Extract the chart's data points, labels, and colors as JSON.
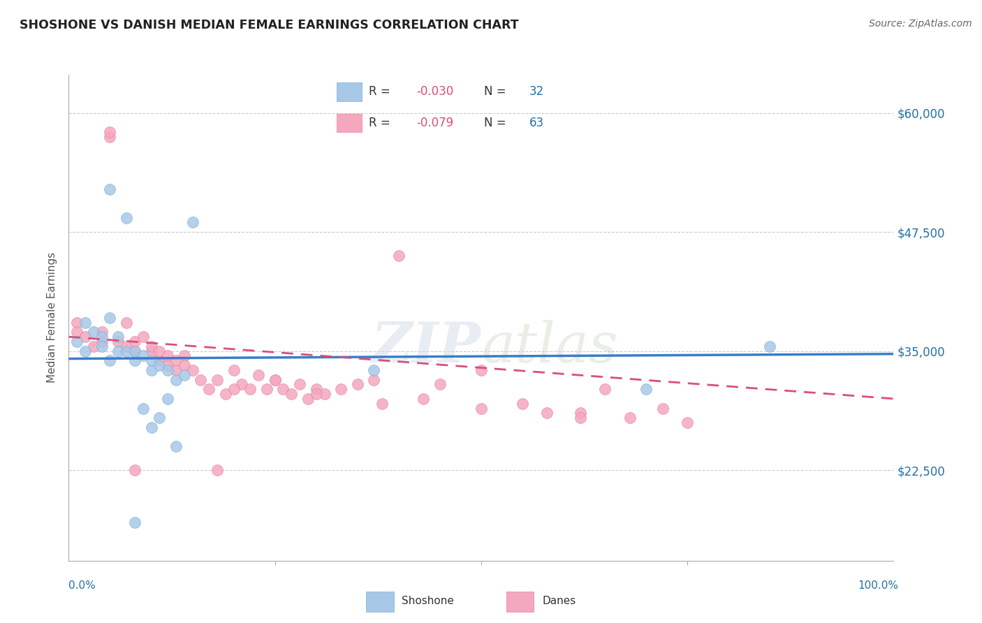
{
  "title": "SHOSHONE VS DANISH MEDIAN FEMALE EARNINGS CORRELATION CHART",
  "source": "Source: ZipAtlas.com",
  "ylabel": "Median Female Earnings",
  "ymin": 13000,
  "ymax": 64000,
  "xmin": 0.0,
  "xmax": 1.0,
  "shoshone_color": "#a8c8e8",
  "shoshone_edge_color": "#7bafd4",
  "danes_color": "#f4a8be",
  "danes_edge_color": "#e87fa0",
  "shoshone_line_color": "#3a7dc9",
  "danes_line_color": "#d94f7a",
  "ytick_positions": [
    22500,
    35000,
    47500,
    60000
  ],
  "ytick_labels": [
    "$22,500",
    "$35,000",
    "$47,500",
    "$60,000"
  ],
  "R_shoshone": -0.03,
  "N_shoshone": 32,
  "R_danes": -0.079,
  "N_danes": 63,
  "watermark_zip": "ZIP",
  "watermark_atlas": "atlas",
  "legend_blue_color": "#2471a3",
  "legend_pink_color": "#d94f7a",
  "shoshone_x": [
    0.01,
    0.02,
    0.02,
    0.03,
    0.04,
    0.04,
    0.05,
    0.05,
    0.06,
    0.06,
    0.07,
    0.08,
    0.08,
    0.09,
    0.1,
    0.1,
    0.11,
    0.12,
    0.13,
    0.14,
    0.05,
    0.07,
    0.15,
    0.37,
    0.85,
    0.7,
    0.12,
    0.09,
    0.1,
    0.11,
    0.13,
    0.08
  ],
  "shoshone_y": [
    36000,
    38000,
    35000,
    37000,
    36500,
    35500,
    34000,
    38500,
    35000,
    36500,
    35000,
    34000,
    35000,
    34500,
    33000,
    34000,
    33500,
    33000,
    32000,
    32500,
    52000,
    49000,
    48500,
    33000,
    35500,
    31000,
    30000,
    29000,
    27000,
    28000,
    25000,
    17000
  ],
  "danes_x": [
    0.01,
    0.01,
    0.02,
    0.03,
    0.04,
    0.04,
    0.05,
    0.05,
    0.06,
    0.07,
    0.07,
    0.08,
    0.08,
    0.09,
    0.1,
    0.1,
    0.11,
    0.11,
    0.12,
    0.12,
    0.13,
    0.13,
    0.14,
    0.14,
    0.15,
    0.16,
    0.17,
    0.18,
    0.19,
    0.2,
    0.21,
    0.22,
    0.23,
    0.24,
    0.25,
    0.26,
    0.27,
    0.28,
    0.29,
    0.3,
    0.31,
    0.33,
    0.35,
    0.37,
    0.4,
    0.45,
    0.5,
    0.55,
    0.62,
    0.65,
    0.68,
    0.72,
    0.75,
    0.2,
    0.25,
    0.3,
    0.38,
    0.43,
    0.5,
    0.58,
    0.62,
    0.18,
    0.08
  ],
  "danes_y": [
    38000,
    37000,
    36500,
    35500,
    36000,
    37000,
    57500,
    58000,
    36000,
    35500,
    38000,
    35000,
    36000,
    36500,
    35000,
    35500,
    34000,
    35000,
    33500,
    34500,
    33000,
    34000,
    34500,
    33500,
    33000,
    32000,
    31000,
    32000,
    30500,
    33000,
    31500,
    31000,
    32500,
    31000,
    32000,
    31000,
    30500,
    31500,
    30000,
    31000,
    30500,
    31000,
    31500,
    32000,
    45000,
    31500,
    33000,
    29500,
    28500,
    31000,
    28000,
    29000,
    27500,
    31000,
    32000,
    30500,
    29500,
    30000,
    29000,
    28500,
    28000,
    22500,
    22500
  ]
}
